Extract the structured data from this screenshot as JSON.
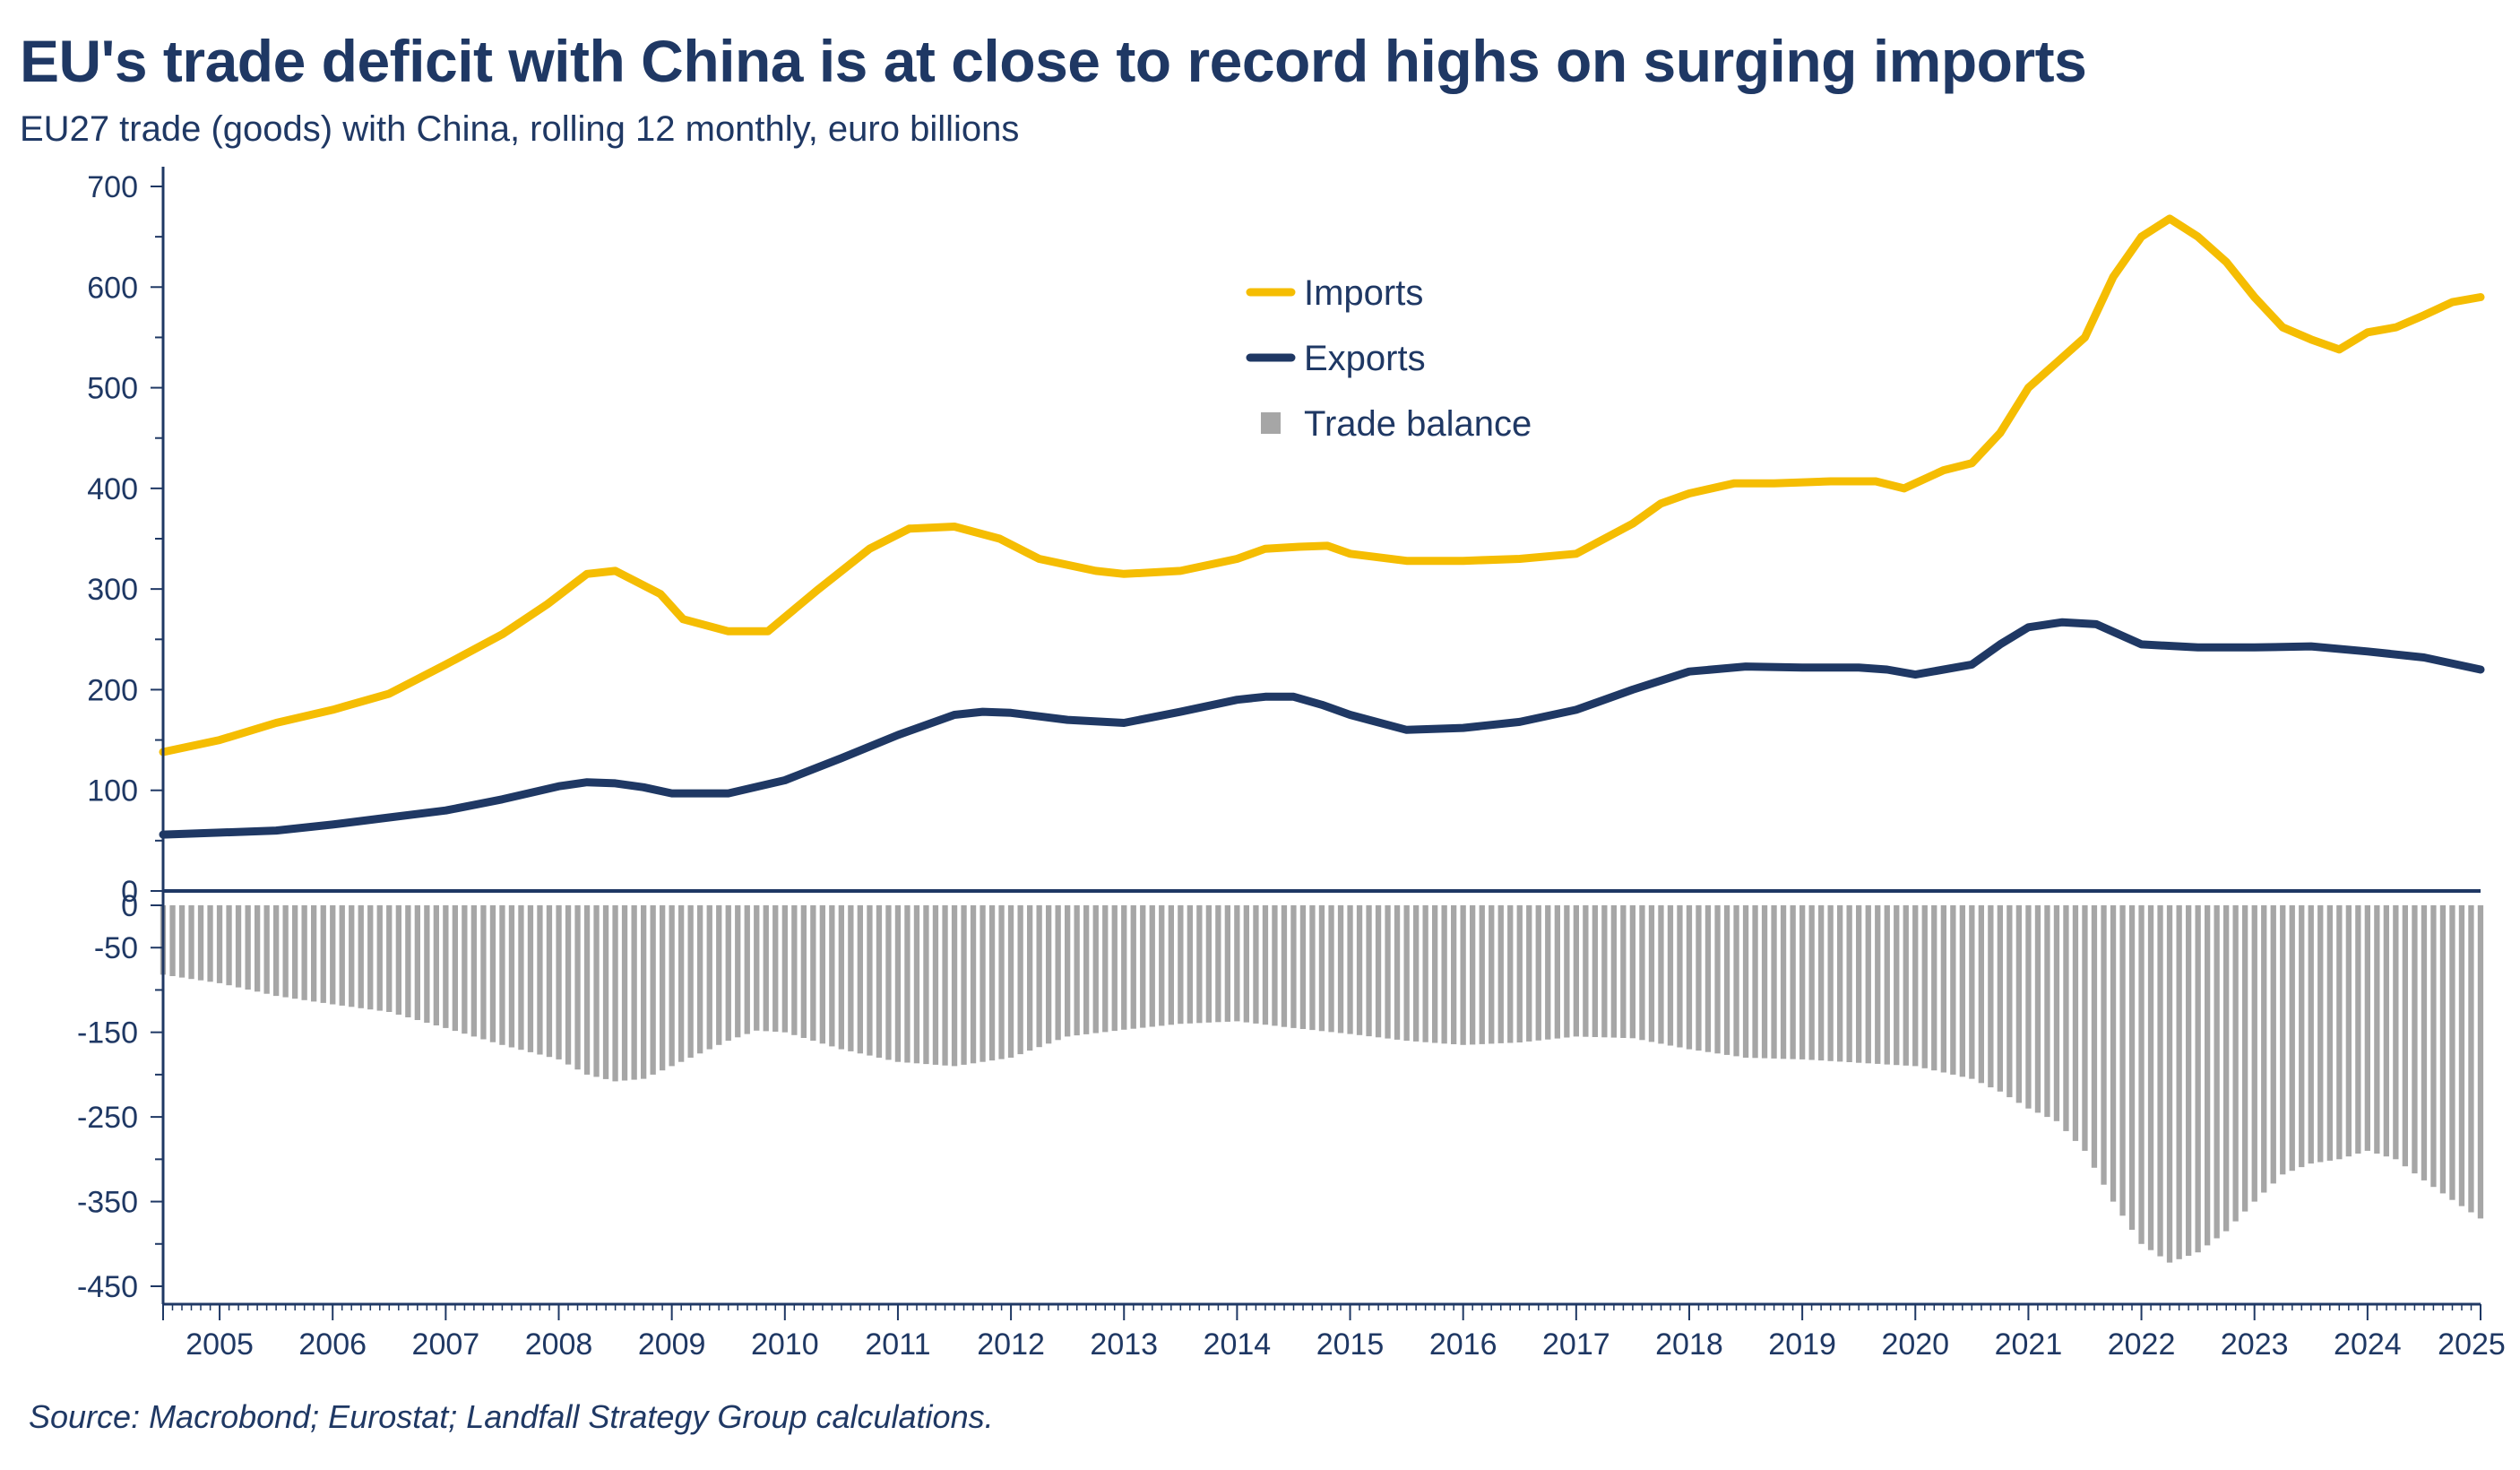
{
  "title": "EU's trade deficit with China is at close to record highs on surging imports",
  "subtitle": "EU27 trade (goods) with China, rolling 12 monthly, euro billions",
  "source": "Source: Macrobond; Eurostat; Landfall Strategy Group calculations.",
  "colors": {
    "imports": "#f5bd02",
    "exports": "#1f3864",
    "balance": "#a6a6a6",
    "axis": "#1f3864"
  },
  "chart_data": {
    "type": "line",
    "x_unit": "year",
    "xlim": [
      2004.5,
      2025.0
    ],
    "ylim_upper": [
      0,
      700
    ],
    "ylim_lower": [
      -450,
      0
    ],
    "y_ticks_upper": [
      "0",
      "100",
      "200",
      "300",
      "400",
      "500",
      "600",
      "700"
    ],
    "y_ticks_lower": [
      "0",
      "-50",
      "-150",
      "-250",
      "-350",
      "-450"
    ],
    "x_ticks": [
      "2005",
      "2006",
      "2007",
      "2008",
      "2009",
      "2010",
      "2011",
      "2012",
      "2013",
      "2014",
      "2015",
      "2016",
      "2017",
      "2018",
      "2019",
      "2020",
      "2021",
      "2022",
      "2023",
      "2024",
      "2025"
    ],
    "legend": [
      "Imports",
      "Exports",
      "Trade balance"
    ],
    "legend_position": "top-center",
    "series": [
      {
        "name": "Imports",
        "type": "line",
        "x": [
          2004.5,
          2005.0,
          2005.5,
          2006.0,
          2006.5,
          2007.0,
          2007.5,
          2007.9,
          2008.25,
          2008.5,
          2008.9,
          2009.1,
          2009.5,
          2009.85,
          2010.3,
          2010.75,
          2011.1,
          2011.5,
          2011.9,
          2012.25,
          2012.75,
          2013.0,
          2013.5,
          2014.0,
          2014.25,
          2014.55,
          2014.8,
          2015.0,
          2015.5,
          2016.0,
          2016.5,
          2017.0,
          2017.5,
          2017.75,
          2018.0,
          2018.4,
          2018.75,
          2019.25,
          2019.65,
          2019.9,
          2020.25,
          2020.5,
          2020.75,
          2021.0,
          2021.5,
          2021.75,
          2022.0,
          2022.25,
          2022.5,
          2022.75,
          2023.0,
          2023.25,
          2023.5,
          2023.75,
          2024.0,
          2024.25,
          2024.5,
          2024.75,
          2025.0
        ],
        "y": [
          138,
          150,
          167,
          180,
          196,
          225,
          255,
          285,
          315,
          318,
          295,
          270,
          258,
          258,
          300,
          340,
          360,
          362,
          350,
          330,
          318,
          315,
          318,
          330,
          340,
          342,
          343,
          335,
          328,
          328,
          330,
          335,
          365,
          385,
          395,
          405,
          405,
          407,
          407,
          400,
          418,
          425,
          455,
          500,
          550,
          610,
          650,
          668,
          650,
          625,
          590,
          560,
          548,
          538,
          555,
          560,
          572,
          585,
          590
        ]
      },
      {
        "name": "Exports",
        "type": "line",
        "x": [
          2004.5,
          2005.0,
          2005.5,
          2006.0,
          2006.5,
          2007.0,
          2007.5,
          2008.0,
          2008.25,
          2008.5,
          2008.75,
          2009.0,
          2009.5,
          2010.0,
          2010.5,
          2011.0,
          2011.5,
          2011.75,
          2012.0,
          2012.5,
          2013.0,
          2013.5,
          2014.0,
          2014.25,
          2014.5,
          2014.75,
          2015.0,
          2015.5,
          2016.0,
          2016.5,
          2017.0,
          2017.5,
          2018.0,
          2018.5,
          2019.0,
          2019.5,
          2019.75,
          2020.0,
          2020.5,
          2020.75,
          2021.0,
          2021.3,
          2021.6,
          2022.0,
          2022.5,
          2023.0,
          2023.5,
          2024.0,
          2024.5,
          2025.0
        ],
        "y": [
          56,
          58,
          60,
          66,
          73,
          80,
          91,
          104,
          108,
          107,
          103,
          97,
          97,
          110,
          132,
          155,
          175,
          178,
          177,
          170,
          167,
          178,
          190,
          193,
          193,
          185,
          175,
          160,
          162,
          168,
          180,
          200,
          218,
          223,
          222,
          222,
          220,
          215,
          225,
          245,
          262,
          267,
          265,
          245,
          242,
          242,
          243,
          238,
          232,
          220
        ]
      },
      {
        "name": "Trade balance",
        "type": "bar",
        "x": [
          2004.5,
          2005.0,
          2005.5,
          2006.0,
          2006.5,
          2007.0,
          2007.5,
          2008.0,
          2008.25,
          2008.5,
          2008.75,
          2009.0,
          2009.5,
          2009.75,
          2010.0,
          2010.5,
          2011.0,
          2011.5,
          2012.0,
          2012.5,
          2013.0,
          2013.5,
          2014.0,
          2014.5,
          2015.0,
          2015.5,
          2016.0,
          2016.5,
          2017.0,
          2017.5,
          2018.0,
          2018.5,
          2019.0,
          2019.5,
          2020.0,
          2020.5,
          2020.75,
          2021.0,
          2021.25,
          2021.5,
          2021.75,
          2022.0,
          2022.25,
          2022.5,
          2022.75,
          2023.0,
          2023.25,
          2023.5,
          2023.75,
          2024.0,
          2024.25,
          2024.5,
          2024.75,
          2025.0
        ],
        "y": [
          -82,
          -92,
          -107,
          -117,
          -126,
          -145,
          -165,
          -182,
          -200,
          -208,
          -205,
          -190,
          -160,
          -148,
          -150,
          -170,
          -185,
          -190,
          -180,
          -155,
          -147,
          -140,
          -137,
          -145,
          -152,
          -160,
          -165,
          -162,
          -155,
          -157,
          -170,
          -180,
          -182,
          -186,
          -190,
          -205,
          -220,
          -240,
          -255,
          -290,
          -350,
          -400,
          -422,
          -410,
          -385,
          -350,
          -318,
          -305,
          -300,
          -290,
          -300,
          -325,
          -348,
          -370
        ]
      }
    ]
  }
}
